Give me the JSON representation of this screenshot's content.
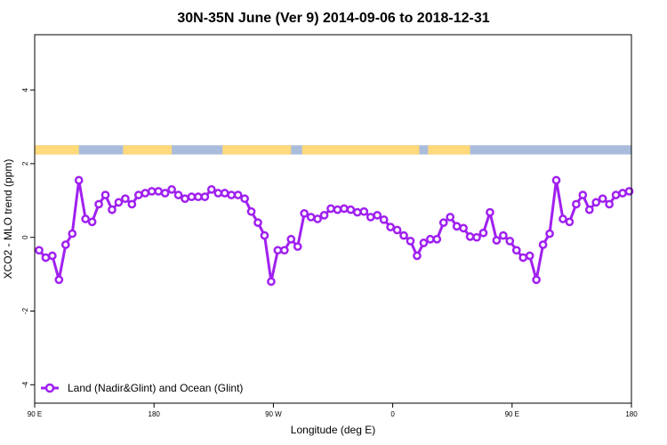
{
  "chart_data": {
    "type": "line",
    "title": "30N-35N June (Ver 9)   2014-09-06 to 2018-12-31",
    "xlabel": "Longitude (deg E)",
    "ylabel": "XCO2 - MLO trend (ppm)",
    "xlim": [
      -90,
      180
    ],
    "ylim": [
      -4.5,
      5.5
    ],
    "x_tick_values": [
      -90,
      -36,
      18,
      72,
      126,
      180
    ],
    "x_tick_labels": [
      "90 E",
      "180",
      "90 W",
      "0",
      "90 E",
      "180"
    ],
    "y_tick_values": [
      -4,
      -2,
      0,
      2,
      4
    ],
    "y_tick_labels": [
      "-4",
      "-2",
      "0",
      "2",
      "4"
    ],
    "grid": false,
    "legend_position": "bottom-left",
    "colors": {
      "series": "#a020f0",
      "land": "#ffd97a",
      "ocean": "#a9bcdc"
    },
    "land_ocean_band": {
      "y_range": [
        2.25,
        2.5
      ],
      "land_segments": [
        [
          -90,
          -72
        ],
        [
          -73.5,
          -70
        ],
        [
          -50,
          -28
        ],
        [
          -5,
          26
        ],
        [
          31,
          84
        ],
        [
          88,
          107
        ]
      ]
    },
    "series": [
      {
        "name": "Land (Nadir&Glint) and Ocean (Glint)",
        "x": [
          -88,
          -85,
          -82,
          -79,
          -76,
          -73,
          -70,
          -67,
          -64,
          -61,
          -58,
          -55,
          -52,
          -49,
          -46,
          -43,
          -40,
          -37,
          -34,
          -31,
          -28,
          -25,
          -22,
          -19,
          -16,
          -13,
          -10,
          -7,
          -4,
          -1,
          2,
          5,
          8,
          11,
          14,
          17,
          20,
          23,
          26,
          29,
          32,
          35,
          38,
          41,
          44,
          47,
          50,
          53,
          56,
          59,
          62,
          65,
          68,
          71,
          74,
          77,
          80,
          83,
          86,
          89,
          92,
          95,
          98,
          101,
          104,
          107,
          110,
          113,
          116,
          119,
          122,
          125,
          128,
          131,
          134,
          137,
          140,
          143,
          146,
          149,
          152,
          155,
          158,
          161,
          164,
          167,
          170,
          173,
          176,
          179
        ],
        "y": [
          -0.35,
          -0.55,
          -0.5,
          -1.15,
          -0.2,
          0.1,
          1.55,
          0.5,
          0.42,
          0.9,
          1.15,
          0.75,
          0.95,
          1.05,
          0.9,
          1.15,
          1.2,
          1.25,
          1.25,
          1.2,
          1.3,
          1.15,
          1.05,
          1.1,
          1.1,
          1.1,
          1.3,
          1.2,
          1.2,
          1.15,
          1.15,
          1.05,
          0.7,
          0.4,
          0.05,
          -1.2,
          -0.35,
          -0.35,
          -0.05,
          -0.25,
          0.65,
          0.55,
          0.5,
          0.6,
          0.78,
          0.75,
          0.78,
          0.75,
          0.68,
          0.7,
          0.55,
          0.6,
          0.48,
          0.28,
          0.2,
          0.05,
          -0.1,
          -0.5,
          -0.15,
          -0.05,
          -0.05,
          0.4,
          0.55,
          0.3,
          0.25,
          0.02,
          0.0,
          0.12,
          0.68,
          -0.08,
          0.05,
          -0.1,
          -0.35,
          -0.55,
          -0.5,
          -1.15,
          -0.2,
          0.1,
          1.55,
          0.5,
          0.42,
          0.9,
          1.15,
          0.75,
          0.95,
          1.05,
          0.9,
          1.15,
          1.2,
          1.25
        ]
      }
    ]
  }
}
